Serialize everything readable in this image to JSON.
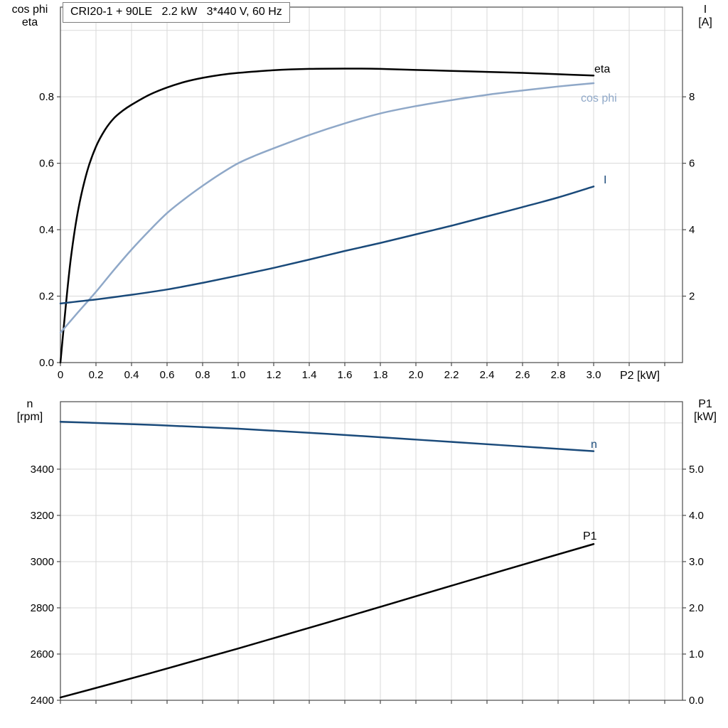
{
  "title_box": {
    "text": "CRI20-1 + 90LE   2.2 kW   3*440 V, 60 Hz"
  },
  "colors": {
    "black": "#000000",
    "light_blue": "#8fa8c8",
    "dark_blue": "#1a4a7a",
    "grid": "#d9d9d9",
    "frame": "#4a4a4a"
  },
  "corner_labels": {
    "top_left_line1": "cos phi",
    "top_left_line2": "eta",
    "top_right_line1": "I",
    "top_right_line2": "[A]",
    "x_axis_label": "P2 [kW]",
    "bottom_left_line1": "n",
    "bottom_left_line2": "[rpm]",
    "bottom_right_line1": "P1",
    "bottom_right_line2": "[kW]"
  },
  "chart_data": [
    {
      "type": "line",
      "title": "CRI20-1 + 90LE   2.2 kW   3*440 V, 60 Hz",
      "x_axis": {
        "label": "P2 [kW]",
        "min": 0,
        "max": 3.5,
        "tick_step": 0.2,
        "tick_labels": [
          {
            "v": 0,
            "t": "0"
          },
          {
            "v": 0.2,
            "t": "0.2"
          },
          {
            "v": 0.4,
            "t": "0.4"
          },
          {
            "v": 0.6,
            "t": "0.6"
          },
          {
            "v": 0.8,
            "t": "0.8"
          },
          {
            "v": 1.0,
            "t": "1.0"
          },
          {
            "v": 1.2,
            "t": "1.2"
          },
          {
            "v": 1.4,
            "t": "1.4"
          },
          {
            "v": 1.6,
            "t": "1.6"
          },
          {
            "v": 1.8,
            "t": "1.8"
          },
          {
            "v": 2.0,
            "t": "2.0"
          },
          {
            "v": 2.2,
            "t": "2.2"
          },
          {
            "v": 2.4,
            "t": "2.4"
          },
          {
            "v": 2.6,
            "t": "2.6"
          },
          {
            "v": 2.8,
            "t": "2.8"
          },
          {
            "v": 3.0,
            "t": "3.0"
          }
        ]
      },
      "y_left": {
        "label": "cos phi / eta",
        "min": 0,
        "max": 1.07,
        "grid_step": 0.2,
        "ticks": [
          {
            "v": 0,
            "t": "0.0"
          },
          {
            "v": 0.2,
            "t": "0.2"
          },
          {
            "v": 0.4,
            "t": "0.4"
          },
          {
            "v": 0.6,
            "t": "0.6"
          },
          {
            "v": 0.8,
            "t": "0.8"
          }
        ]
      },
      "y_right": {
        "label": "I [A]",
        "min": 0,
        "max": 10.7,
        "ticks": [
          {
            "v": 2,
            "t": "2"
          },
          {
            "v": 4,
            "t": "4"
          },
          {
            "v": 6,
            "t": "6"
          },
          {
            "v": 8,
            "t": "8"
          }
        ]
      },
      "series": [
        {
          "name": "eta",
          "axis": "left",
          "color_key": "black",
          "points": [
            [
              0,
              0
            ],
            [
              0.03,
              0.17
            ],
            [
              0.06,
              0.32
            ],
            [
              0.1,
              0.46
            ],
            [
              0.15,
              0.575
            ],
            [
              0.2,
              0.65
            ],
            [
              0.25,
              0.7
            ],
            [
              0.3,
              0.735
            ],
            [
              0.35,
              0.758
            ],
            [
              0.4,
              0.776
            ],
            [
              0.5,
              0.806
            ],
            [
              0.6,
              0.828
            ],
            [
              0.7,
              0.845
            ],
            [
              0.8,
              0.857
            ],
            [
              0.9,
              0.866
            ],
            [
              1.0,
              0.872
            ],
            [
              1.2,
              0.88
            ],
            [
              1.4,
              0.884
            ],
            [
              1.6,
              0.885
            ],
            [
              1.8,
              0.884
            ],
            [
              2.0,
              0.881
            ],
            [
              2.2,
              0.878
            ],
            [
              2.4,
              0.875
            ],
            [
              2.6,
              0.872
            ],
            [
              2.8,
              0.868
            ],
            [
              3.0,
              0.864
            ]
          ]
        },
        {
          "name": "cos phi",
          "axis": "left",
          "color_key": "light_blue",
          "points": [
            [
              0,
              0.09
            ],
            [
              0.1,
              0.152
            ],
            [
              0.2,
              0.213
            ],
            [
              0.3,
              0.278
            ],
            [
              0.4,
              0.34
            ],
            [
              0.5,
              0.397
            ],
            [
              0.6,
              0.45
            ],
            [
              0.7,
              0.493
            ],
            [
              0.8,
              0.532
            ],
            [
              0.9,
              0.568
            ],
            [
              1.0,
              0.6
            ],
            [
              1.1,
              0.624
            ],
            [
              1.2,
              0.645
            ],
            [
              1.4,
              0.685
            ],
            [
              1.6,
              0.72
            ],
            [
              1.8,
              0.75
            ],
            [
              2.0,
              0.772
            ],
            [
              2.2,
              0.79
            ],
            [
              2.4,
              0.806
            ],
            [
              2.6,
              0.819
            ],
            [
              2.8,
              0.831
            ],
            [
              3.0,
              0.841
            ]
          ]
        },
        {
          "name": "I",
          "axis": "right",
          "color_key": "dark_blue",
          "points": [
            [
              0,
              1.78
            ],
            [
              0.2,
              1.9
            ],
            [
              0.4,
              2.04
            ],
            [
              0.6,
              2.2
            ],
            [
              0.8,
              2.4
            ],
            [
              1.0,
              2.62
            ],
            [
              1.2,
              2.85
            ],
            [
              1.4,
              3.1
            ],
            [
              1.6,
              3.36
            ],
            [
              1.8,
              3.6
            ],
            [
              2.0,
              3.86
            ],
            [
              2.2,
              4.12
            ],
            [
              2.4,
              4.4
            ],
            [
              2.6,
              4.68
            ],
            [
              2.8,
              4.97
            ],
            [
              3.0,
              5.3
            ]
          ]
        }
      ]
    },
    {
      "type": "line",
      "title": "",
      "x_axis": {
        "label": "",
        "min": 0,
        "max": 3.5,
        "tick_step": 0.2,
        "tick_labels": []
      },
      "y_left": {
        "label": "n [rpm]",
        "min": 2400,
        "max": 3692,
        "grid_step": 200,
        "ticks": [
          {
            "v": 2400,
            "t": "2400"
          },
          {
            "v": 2600,
            "t": "2600"
          },
          {
            "v": 2800,
            "t": "2800"
          },
          {
            "v": 3000,
            "t": "3000"
          },
          {
            "v": 3200,
            "t": "3200"
          },
          {
            "v": 3400,
            "t": "3400"
          }
        ]
      },
      "y_right": {
        "label": "P1 [kW]",
        "min": 0,
        "max": 6.46,
        "ticks": [
          {
            "v": 0,
            "t": "0.0"
          },
          {
            "v": 1,
            "t": "1.0"
          },
          {
            "v": 2,
            "t": "2.0"
          },
          {
            "v": 3,
            "t": "3.0"
          },
          {
            "v": 4,
            "t": "4.0"
          },
          {
            "v": 5,
            "t": "5.0"
          }
        ]
      },
      "series": [
        {
          "name": "n",
          "axis": "left",
          "color_key": "dark_blue",
          "points": [
            [
              0,
              3605
            ],
            [
              0.5,
              3592
            ],
            [
              1.0,
              3575
            ],
            [
              1.5,
              3553
            ],
            [
              2.0,
              3528
            ],
            [
              2.5,
              3503
            ],
            [
              3.0,
              3478
            ]
          ]
        },
        {
          "name": "P1",
          "axis": "right",
          "color_key": "black",
          "points": [
            [
              0,
              0.06
            ],
            [
              0.5,
              0.58
            ],
            [
              1.0,
              1.12
            ],
            [
              1.5,
              1.68
            ],
            [
              2.0,
              2.25
            ],
            [
              2.5,
              2.82
            ],
            [
              3.0,
              3.38
            ]
          ]
        }
      ]
    }
  ]
}
